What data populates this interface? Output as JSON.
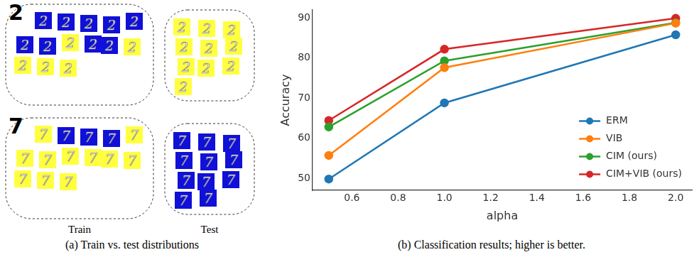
{
  "panel_a": {
    "split_labels": [
      "Train",
      "Test"
    ],
    "groups": [
      {
        "label": "2",
        "train": [
          "#1010d8",
          "#1010d8",
          "#1010d8",
          "#1010d8",
          "#1010d8",
          "#1010d8",
          "#1010d8",
          "#ffff40",
          "#1010d8",
          "#1010d8",
          "#ffff40",
          "#ffff40",
          "#ffff40",
          "#ffff40"
        ],
        "test": [
          "#ffff40",
          "#ffff40",
          "#ffff40",
          "#ffff40",
          "#ffff40",
          "#ffff40",
          "#ffff40",
          "#ffff40",
          "#ffff40",
          "#ffff40"
        ]
      },
      {
        "label": "7",
        "train": [
          "#ffff40",
          "#1010d8",
          "#1010d8",
          "#1010d8",
          "#ffff40",
          "#ffff40",
          "#ffff40",
          "#ffff40",
          "#ffff40",
          "#ffff40",
          "#ffff40",
          "#ffff40",
          "#ffff40",
          "#ffff40"
        ],
        "test": [
          "#1010d8",
          "#1010d8",
          "#1010d8",
          "#1010d8",
          "#1010d8",
          "#1010d8",
          "#1010d8",
          "#1010d8",
          "#1010d8",
          "#1010d8",
          "#1010d8"
        ]
      }
    ]
  },
  "captions": {
    "a": "(a) Train vs. test distributions",
    "b": "(b) Classification results; higher is better."
  },
  "chart_data": {
    "type": "line",
    "x_label": "alpha",
    "y_label": "Accuracy",
    "x": [
      0.5,
      1.0,
      2.0
    ],
    "series": [
      {
        "name": "ERM",
        "color": "#1f77b4",
        "marker": "circle",
        "values": [
          49.8,
          68.8,
          85.8
        ]
      },
      {
        "name": "VIB",
        "color": "#ff7f0e",
        "marker": "circle",
        "values": [
          55.7,
          77.6,
          88.7
        ]
      },
      {
        "name": "CIM (ours)",
        "color": "#2ca02c",
        "marker": "circle",
        "values": [
          62.8,
          79.3,
          88.8
        ]
      },
      {
        "name": "CIM+VIB (ours)",
        "color": "#d62728",
        "marker": "circle",
        "values": [
          64.4,
          82.2,
          89.9
        ]
      }
    ],
    "xlim": [
      0.43,
      2.07
    ],
    "xticks": [
      0.6,
      0.8,
      {
        "value": 1,
        "label": "1.0"
      },
      1.2,
      1.4,
      1.6,
      1.8,
      {
        "value": 2,
        "label": "2.0"
      }
    ],
    "ylim": [
      47,
      92
    ],
    "yticks": [
      50,
      60,
      70,
      80,
      90
    ],
    "grid": false,
    "legend": "lower right"
  }
}
